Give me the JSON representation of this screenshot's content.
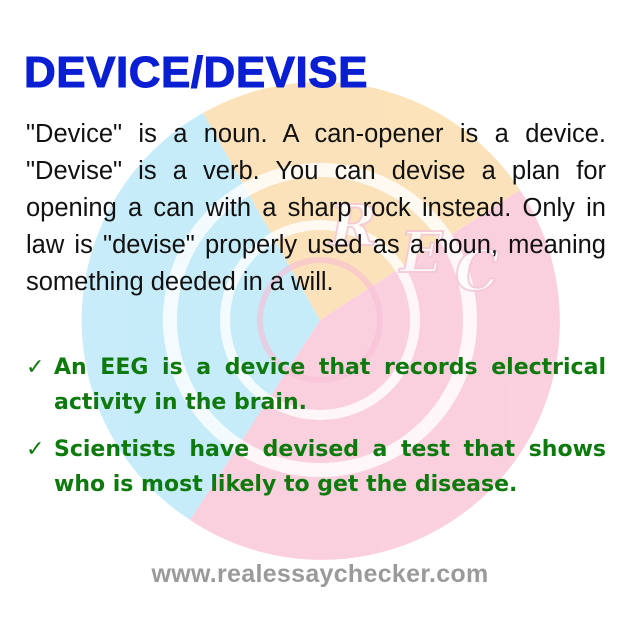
{
  "title": "DEVICE/DEVISE",
  "definition": "\"Device\" is a noun. A can-opener is a device. \"Devise\" is a  verb. You can devise a plan for opening a can with  a sharp rock instead. Only in law is \"devise\" properly used as a noun, meaning something  deeded in a will.",
  "examples": [
    {
      "icon": "check-icon",
      "text": "An EEG is a device that records electrical activity in the brain."
    },
    {
      "icon": "check-icon",
      "text": "Scientists have devised a test that shows who is most likely to get the disease."
    }
  ],
  "footer": {
    "url": "www.realessaychecker.com"
  },
  "watermark": {
    "letters": [
      "R",
      "E",
      "C"
    ]
  },
  "colors": {
    "title": "#0a1fd1",
    "body": "#111111",
    "examples": "#0e7a0e",
    "footer": "#9a9a9a",
    "watermark_orange": "#fbd9a3",
    "watermark_blue": "#b5e6f7",
    "watermark_pink": "#f9c0d4"
  }
}
